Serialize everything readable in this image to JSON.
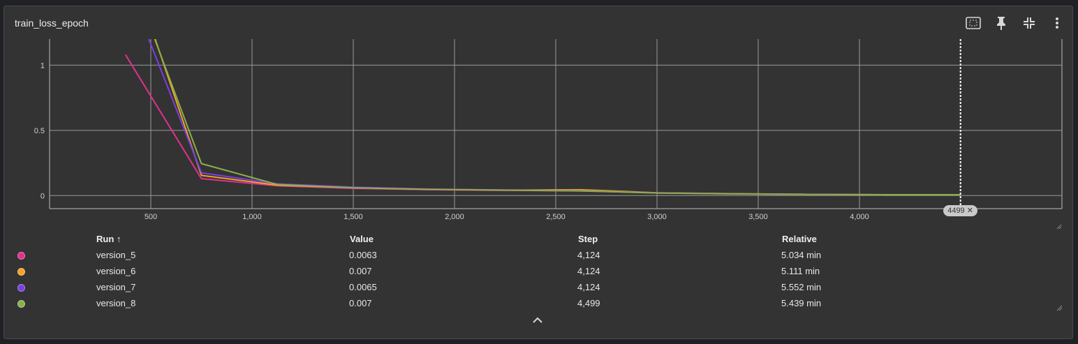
{
  "card": {
    "title": "train_loss_epoch"
  },
  "toolbar": {
    "icons": [
      "fit-to-data-icon",
      "pin-icon",
      "collapse-icon",
      "more-vert-icon"
    ]
  },
  "step_marker": {
    "label": "4499",
    "close": "✕"
  },
  "table": {
    "headers": {
      "run": "Run ↑",
      "value": "Value",
      "step": "Step",
      "relative": "Relative"
    },
    "rows": [
      {
        "run": "version_5",
        "value": "0.0063",
        "step": "4,124",
        "relative": "5.034 min",
        "color": "#e0318e"
      },
      {
        "run": "version_6",
        "value": "0.007",
        "step": "4,124",
        "relative": "5.111 min",
        "color": "#f0a428"
      },
      {
        "run": "version_7",
        "value": "0.0065",
        "step": "4,124",
        "relative": "5.552 min",
        "color": "#7b3fe0"
      },
      {
        "run": "version_8",
        "value": "0.007",
        "step": "4,499",
        "relative": "5.439 min",
        "color": "#8ab04a"
      }
    ]
  },
  "chart_data": {
    "type": "line",
    "title": "train_loss_epoch",
    "xlim": [
      0,
      5000
    ],
    "ylim": [
      -0.1,
      1.2
    ],
    "xticks": [
      500,
      1000,
      1500,
      2000,
      2500,
      3000,
      3500,
      4000
    ],
    "xtick_labels": [
      "500",
      "1,000",
      "1,500",
      "2,000",
      "2,500",
      "3,000",
      "3,500",
      "4,000"
    ],
    "yticks": [
      0,
      0.5,
      1
    ],
    "ytick_labels": [
      "0",
      "0.5",
      "1"
    ],
    "grid": true,
    "cursor_step": 4499,
    "series": [
      {
        "name": "version_5",
        "color": "#e0318e",
        "x": [
          375,
          750,
          1125,
          1500,
          1875,
          2250,
          2625,
          3000,
          3375,
          3750,
          4124
        ],
        "y": [
          1.08,
          0.13,
          0.075,
          0.055,
          0.045,
          0.04,
          0.036,
          0.02,
          0.013,
          0.009,
          0.0063
        ]
      },
      {
        "name": "version_6",
        "color": "#f0a428",
        "x": [
          500,
          750,
          1125,
          1500,
          1875,
          2250,
          2625,
          3000,
          3375,
          3750,
          4124
        ],
        "y": [
          1.3,
          0.155,
          0.08,
          0.06,
          0.048,
          0.042,
          0.045,
          0.022,
          0.015,
          0.01,
          0.007
        ]
      },
      {
        "name": "version_7",
        "color": "#7b3fe0",
        "x": [
          490,
          750,
          1125,
          1500,
          1875,
          2250,
          2625,
          3000,
          3375,
          3750,
          4124
        ],
        "y": [
          1.2,
          0.175,
          0.09,
          0.065,
          0.05,
          0.043,
          0.038,
          0.021,
          0.014,
          0.01,
          0.0065
        ]
      },
      {
        "name": "version_8",
        "color": "#8ab04a",
        "x": [
          500,
          750,
          1125,
          1500,
          1875,
          2250,
          2625,
          3000,
          3375,
          3750,
          4124,
          4499
        ],
        "y": [
          1.28,
          0.245,
          0.085,
          0.06,
          0.048,
          0.042,
          0.036,
          0.02,
          0.013,
          0.009,
          0.007,
          0.007
        ]
      }
    ]
  }
}
